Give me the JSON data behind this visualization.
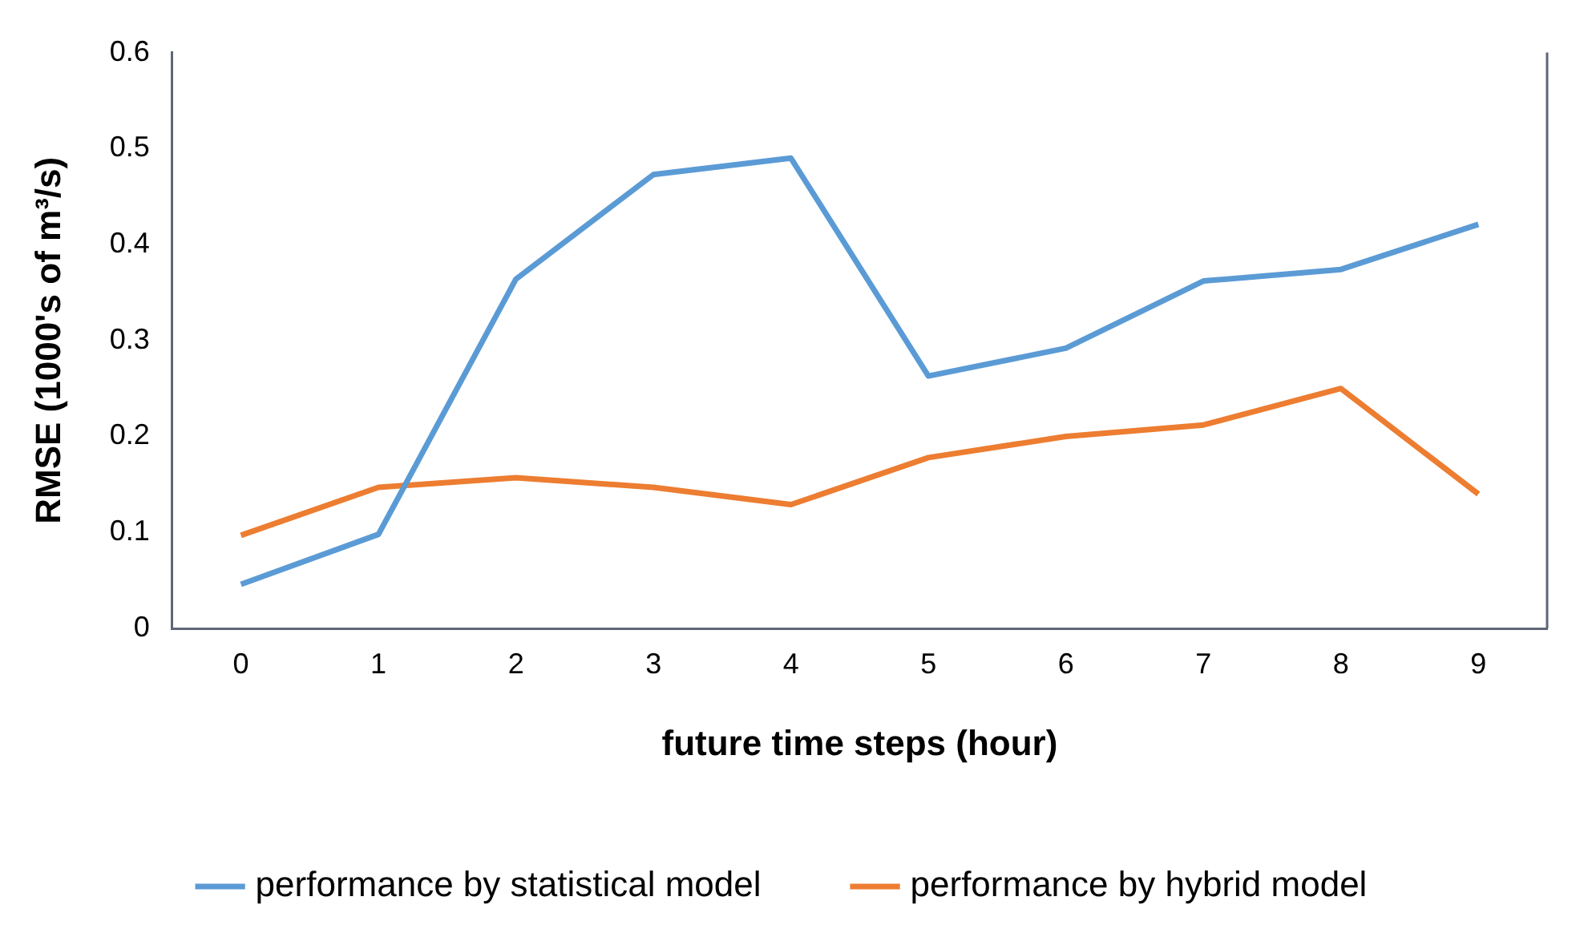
{
  "chart_data": {
    "type": "line",
    "xlabel": "future time steps (hour)",
    "ylabel": "RMSE (1000's of m³/s)",
    "categories": [
      "0",
      "1",
      "2",
      "3",
      "4",
      "5",
      "6",
      "7",
      "8",
      "9"
    ],
    "series": [
      {
        "name": "performance by statistical model",
        "color": "#5b9bd5",
        "values": [
          0.046,
          0.098,
          0.364,
          0.473,
          0.49,
          0.263,
          0.292,
          0.362,
          0.374,
          0.421
        ]
      },
      {
        "name": "performance by hybrid model",
        "color": "#ed7d31",
        "values": [
          0.097,
          0.147,
          0.157,
          0.147,
          0.129,
          0.178,
          0.2,
          0.212,
          0.25,
          0.14
        ]
      }
    ],
    "ylim": [
      0,
      0.6
    ],
    "yticks": [
      0,
      0.1,
      0.2,
      0.3,
      0.4,
      0.5,
      0.6
    ],
    "grid": false,
    "legend": "bottom",
    "marker": "none",
    "line_style": "solid"
  }
}
